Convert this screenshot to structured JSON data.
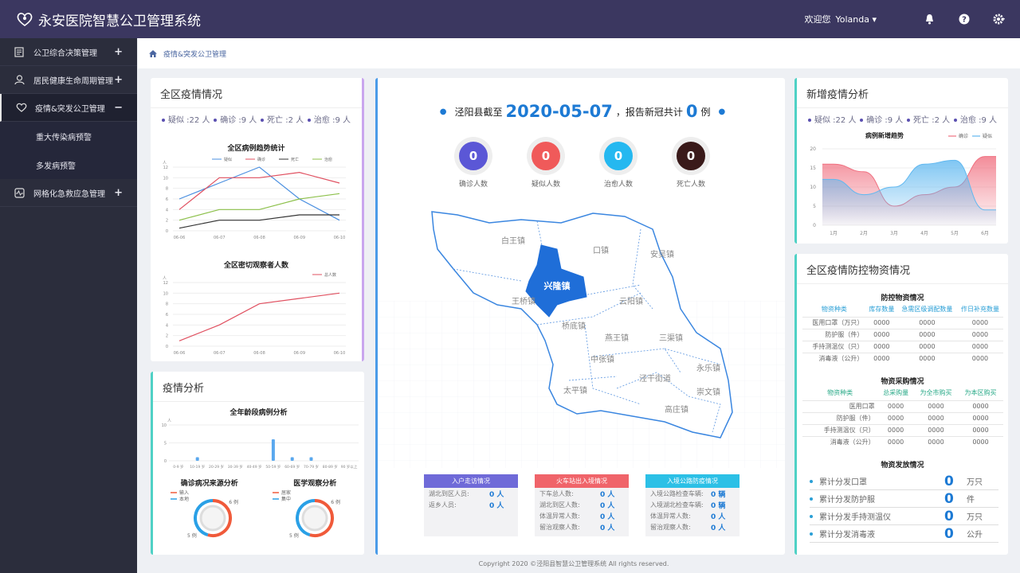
{
  "header": {
    "title": "永安医院智慧公卫管理系统",
    "welcome": "欢迎您",
    "user": "Yolanda"
  },
  "sidebar": {
    "items": [
      {
        "label": "公卫综合决策管理",
        "toggle": "+"
      },
      {
        "label": "居民健康生命周期管理",
        "toggle": "+"
      },
      {
        "label": "疫情&突发公卫管理",
        "toggle": "−"
      },
      {
        "label": "网格化急救应急管理",
        "toggle": "+"
      }
    ],
    "subitems": [
      "重大传染病预警",
      "多发病预警"
    ]
  },
  "breadcrumb": "疫情&突发公卫管理",
  "left_top": {
    "title": "全区疫情情况",
    "stats": [
      "疑似 :22 人",
      "确诊 :9 人",
      "死亡 :2 人",
      "治愈 :9 人"
    ]
  },
  "left_bottom": {
    "title": "疫情分析"
  },
  "center": {
    "prefix": "泾阳县截至",
    "date": "2020-05-07",
    "mid": "，报告新冠共计",
    "count": "0",
    "suffix": "例",
    "circles": [
      {
        "value": "0",
        "label": "确诊人数",
        "color": "#5b57d6"
      },
      {
        "value": "0",
        "label": "疑似人数",
        "color": "#f05a5a"
      },
      {
        "value": "0",
        "label": "治愈人数",
        "color": "#25b8f0"
      },
      {
        "value": "0",
        "label": "死亡人数",
        "color": "#3a1a1a"
      }
    ],
    "map_towns": [
      "白王镇",
      "口镇",
      "安吴镇",
      "兴隆镇",
      "王桥镇",
      "云阳镇",
      "桥底镇",
      "燕王镇",
      "三渠镇",
      "中张镇",
      "永乐镇",
      "泾干街道",
      "太平镇",
      "崇文镇",
      "高庄镇"
    ],
    "boxes": [
      {
        "title": "入户走访情况",
        "color": "#6f6ad8",
        "rows": [
          {
            "k": "湖北到区人员:",
            "v": "0 人"
          },
          {
            "k": "返乡人员:",
            "v": "0 人"
          }
        ]
      },
      {
        "title": "火车站出入境情况",
        "color": "#f0646a",
        "rows": [
          {
            "k": "下车总人数:",
            "v": "0 人"
          },
          {
            "k": "湖北到区人数:",
            "v": "0 人"
          },
          {
            "k": "体温异常人数:",
            "v": "0 人"
          },
          {
            "k": "留治观察人数:",
            "v": "0 人"
          }
        ]
      },
      {
        "title": "入境公路防疫情况",
        "color": "#2cc0e6",
        "rows": [
          {
            "k": "入境公路检查车辆:",
            "v": "0 辆"
          },
          {
            "k": "入境湖北检查车辆:",
            "v": "0 辆"
          },
          {
            "k": "体温异常人数:",
            "v": "0 人"
          },
          {
            "k": "留治观察人数:",
            "v": "0 人"
          }
        ]
      }
    ]
  },
  "right_top": {
    "title": "新增疫情分析",
    "stats": [
      "疑似 :22 人",
      "确诊 :9 人",
      "死亡 :2 人",
      "治愈 :9 人"
    ]
  },
  "right_bottom": {
    "title": "全区疫情防控物资情况",
    "t1": {
      "title": "防控物资情况",
      "headers": [
        "物资种类",
        "库存数量",
        "急需区级调配数量",
        "作日补充数量"
      ],
      "rows": [
        [
          "医用口罩（万只）",
          "0000",
          "0000",
          "0000"
        ],
        [
          "防护服（件）",
          "0000",
          "0000",
          "0000"
        ],
        [
          "手持测温仪（只）",
          "0000",
          "0000",
          "0000"
        ],
        [
          "消毒液（公升）",
          "0000",
          "0000",
          "0000"
        ]
      ]
    },
    "t2": {
      "title": "物资采购情况",
      "headers": [
        "物资种类",
        "总采购量",
        "为全市购买",
        "为本区购买"
      ],
      "rows": [
        [
          "医用口罩",
          "0000",
          "0000",
          "0000"
        ],
        [
          "防护服（件）",
          "0000",
          "0000",
          "0000"
        ],
        [
          "手持测温仪（只）",
          "0000",
          "0000",
          "0000"
        ],
        [
          "消毒液（公升）",
          "0000",
          "0000",
          "0000"
        ]
      ]
    },
    "t3": {
      "title": "物资发放情况",
      "rows": [
        {
          "k": "累计分发口罩",
          "v": "0",
          "u": "万只"
        },
        {
          "k": "累计分发防护服",
          "v": "0",
          "u": "件"
        },
        {
          "k": "累计分发手持测温仪",
          "v": "0",
          "u": "万只"
        },
        {
          "k": "累计分发消毒液",
          "v": "0",
          "u": "公升"
        }
      ]
    }
  },
  "footer": "Copyright 2020 ©泾阳县智慧公卫管理系统 All rights reserved.",
  "chart_data": [
    {
      "type": "line",
      "title": "全区病例趋势统计",
      "ylabel": "人",
      "categories": [
        "06-06",
        "06-07",
        "06-08",
        "06-09",
        "06-10"
      ],
      "ylim": [
        0,
        12
      ],
      "yticks": [
        "0",
        "2",
        "4",
        "6",
        "8",
        "10",
        "12"
      ],
      "series": [
        {
          "name": "疑似",
          "color": "#4a8fe0",
          "values": [
            6,
            9,
            12,
            6,
            2
          ]
        },
        {
          "name": "确诊",
          "color": "#e05060",
          "values": [
            4,
            10,
            10,
            11,
            9
          ]
        },
        {
          "name": "死亡",
          "color": "#333333",
          "values": [
            0.5,
            2,
            2,
            3,
            3
          ]
        },
        {
          "name": "治愈",
          "color": "#8cc04a",
          "values": [
            2,
            4,
            4,
            6,
            7
          ]
        }
      ]
    },
    {
      "type": "line",
      "title": "全区密切观察者人数",
      "ylabel": "人",
      "categories": [
        "06-06",
        "06-07",
        "06-08",
        "06-09",
        "06-10"
      ],
      "ylim": [
        0,
        12
      ],
      "yticks": [
        "0",
        "2",
        "4",
        "6",
        "8",
        "10",
        "12"
      ],
      "series": [
        {
          "name": "总人数",
          "color": "#e05060",
          "values": [
            1,
            4,
            8,
            9,
            10
          ]
        }
      ]
    },
    {
      "type": "bar",
      "title": "全年龄段病例分析",
      "ylabel": "人",
      "categories": [
        "0-9 岁",
        "10-19 岁",
        "20-29 岁",
        "30-39 岁",
        "40-49 岁",
        "50-59 岁",
        "60-69 岁",
        "70-79 岁",
        "80-89 岁",
        "90 岁以上"
      ],
      "values": [
        0,
        1,
        0,
        0,
        0,
        6,
        1,
        1,
        0,
        0
      ],
      "ylim": [
        0,
        10
      ],
      "yticks": [
        "0",
        "5",
        "10"
      ]
    },
    {
      "type": "pie",
      "title": "确诊病况来源分析",
      "legend": [
        "输入",
        "本地"
      ],
      "colors": [
        "#f05a3a",
        "#2aa0e6"
      ],
      "values": [
        6,
        5
      ],
      "labels": [
        "6 例",
        "5 例"
      ]
    },
    {
      "type": "pie",
      "title": "医学观察分析",
      "legend": [
        "居家",
        "集中"
      ],
      "colors": [
        "#f05a3a",
        "#2aa0e6"
      ],
      "values": [
        6,
        5
      ],
      "labels": [
        "6 例",
        "5 例"
      ]
    },
    {
      "type": "area",
      "title": "病例新增趋势",
      "categories": [
        "1月",
        "2月",
        "3月",
        "4月",
        "5月",
        "6月"
      ],
      "ylim": [
        0,
        20
      ],
      "yticks": [
        "0",
        "5",
        "10",
        "15",
        "20"
      ],
      "series": [
        {
          "name": "确诊",
          "color": "#f07080",
          "values": [
            16,
            14,
            5,
            8,
            10,
            18
          ]
        },
        {
          "name": "疑似",
          "color": "#60b8f0",
          "values": [
            12,
            8,
            10,
            16,
            17,
            4
          ]
        }
      ]
    }
  ]
}
